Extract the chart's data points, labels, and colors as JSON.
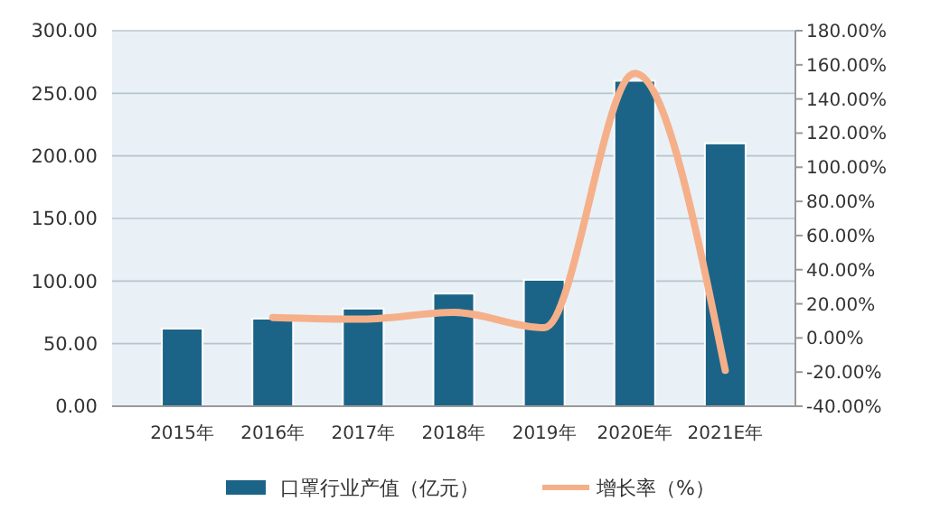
{
  "chart_data": {
    "type": "bar",
    "categories": [
      "2015年",
      "2016年",
      "2017年",
      "2018年",
      "2019年",
      "2020E年",
      "2021E年"
    ],
    "series": [
      {
        "name": "口罩行业产值（亿元）",
        "color": "#1b6488",
        "values": [
          62,
          70,
          78,
          90,
          101,
          260,
          210
        ]
      },
      {
        "name": "增长率（%）",
        "type": "line",
        "axis": "y2",
        "color": "#f5b08a",
        "values": [
          null,
          12,
          11,
          15,
          6,
          155,
          -19
        ]
      }
    ],
    "ylim": [
      0,
      300
    ],
    "yticks": [
      {
        "value": 0,
        "label": "0.00"
      },
      {
        "value": 50,
        "label": "50.00"
      },
      {
        "value": 100,
        "label": "100.00"
      },
      {
        "value": 150,
        "label": "150.00"
      },
      {
        "value": 200,
        "label": "200.00"
      },
      {
        "value": 250,
        "label": "250.00"
      },
      {
        "value": 300,
        "label": "300.00"
      }
    ],
    "y2lim": [
      -40,
      180
    ],
    "y2ticks": [
      {
        "value": -40,
        "label": "-40.00%"
      },
      {
        "value": -20,
        "label": "-20.00%"
      },
      {
        "value": 0,
        "label": "0.00%"
      },
      {
        "value": 20,
        "label": "20.00%"
      },
      {
        "value": 40,
        "label": "40.00%"
      },
      {
        "value": 60,
        "label": "60.00%"
      },
      {
        "value": 80,
        "label": "80.00%"
      },
      {
        "value": 100,
        "label": "100.00%"
      },
      {
        "value": 120,
        "label": "120.00%"
      },
      {
        "value": 140,
        "label": "140.00%"
      },
      {
        "value": 160,
        "label": "160.00%"
      },
      {
        "value": 180,
        "label": "180.00%"
      }
    ],
    "grid": "y",
    "legend": "bottom",
    "marker": "none",
    "line_style": "solid"
  }
}
